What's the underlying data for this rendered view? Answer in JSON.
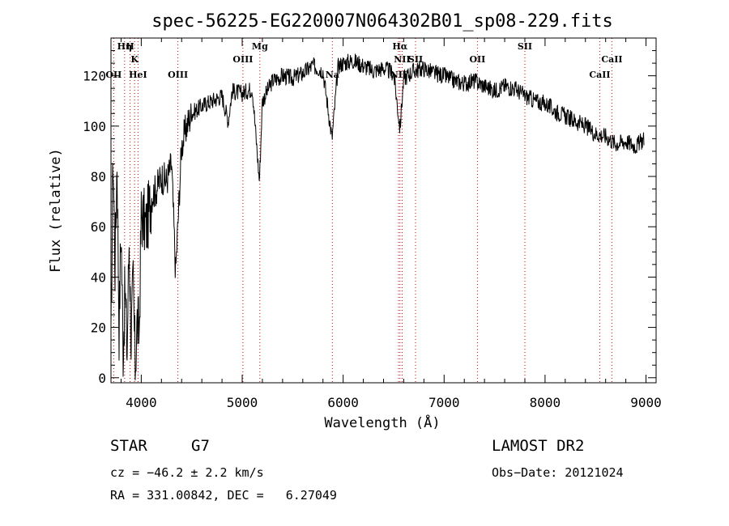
{
  "chart_data": {
    "type": "line",
    "title": "spec-56225-EG220007N064302B01_sp08-229.fits",
    "xlabel": "Wavelength (Å)",
    "ylabel": "Flux (relative)",
    "xlim": [
      3700,
      9100
    ],
    "ylim": [
      -2,
      135
    ],
    "x_ticks": [
      4000,
      5000,
      6000,
      7000,
      8000,
      9000
    ],
    "y_ticks": [
      0,
      20,
      40,
      60,
      80,
      100,
      120
    ],
    "grid": false,
    "series": [
      {
        "x": [
          3700,
          3720,
          3740,
          3760,
          3780,
          3800,
          3820,
          3840,
          3860,
          3880,
          3900,
          3920,
          3940,
          3960,
          3980,
          4000,
          4050,
          4100,
          4150,
          4200,
          4250,
          4300,
          4340,
          4400,
          4450,
          4500,
          4600,
          4700,
          4800,
          4861,
          4900,
          5000,
          5100,
          5170,
          5200,
          5300,
          5400,
          5500,
          5600,
          5700,
          5800,
          5890,
          5950,
          6000,
          6100,
          6200,
          6300,
          6400,
          6500,
          6563,
          6600,
          6700,
          6800,
          6900,
          7000,
          7100,
          7200,
          7300,
          7400,
          7500,
          7600,
          7700,
          7800,
          7900,
          8000,
          8100,
          8200,
          8300,
          8400,
          8500,
          8600,
          8700,
          8800,
          8900,
          8980
        ],
        "y": [
          10,
          90,
          45,
          88,
          20,
          60,
          12,
          35,
          10,
          55,
          15,
          38,
          5,
          22,
          18,
          65,
          60,
          72,
          75,
          80,
          78,
          85,
          42,
          92,
          100,
          105,
          108,
          110,
          112,
          102,
          114,
          113,
          115,
          78,
          110,
          118,
          120,
          119,
          121,
          124,
          122,
          95,
          124,
          125,
          126,
          124,
          122,
          123,
          121,
          99,
          119,
          122,
          123,
          121,
          120,
          118,
          117,
          118,
          116,
          114,
          116,
          115,
          112,
          110,
          109,
          106,
          104,
          102,
          100,
          97,
          96,
          93,
          94,
          92,
          95
        ]
      }
    ],
    "spectral_lines": [
      {
        "label": "OII",
        "x": 3727,
        "row": 3
      },
      {
        "label": "Hη",
        "x": 3835,
        "row": 1
      },
      {
        "label": "H",
        "x": 3889,
        "row": 1
      },
      {
        "label": "K",
        "x": 3934,
        "row": 2
      },
      {
        "label": "HeI",
        "x": 3968,
        "row": 3
      },
      {
        "label": "OIII",
        "x": 4363,
        "row": 3
      },
      {
        "label": "OIII",
        "x": 5007,
        "row": 2
      },
      {
        "label": "Mg",
        "x": 5175,
        "row": 1
      },
      {
        "label": "Na",
        "x": 5893,
        "row": 3
      },
      {
        "label": "Hα",
        "x": 6563,
        "row": 1
      },
      {
        "label": "NII",
        "x": 6584,
        "row": 2
      },
      {
        "label": "NII",
        "x": 6548,
        "row": 3
      },
      {
        "label": "SII",
        "x": 6717,
        "row": 2
      },
      {
        "label": "OII",
        "x": 7330,
        "row": 2
      },
      {
        "label": "SII",
        "x": 7800,
        "row": 1
      },
      {
        "label": "CaII",
        "x": 8542,
        "row": 3
      },
      {
        "label": "CaII",
        "x": 8662,
        "row": 2
      }
    ]
  },
  "info": {
    "object_class": "STAR",
    "subclass": "G7",
    "survey": "LAMOST DR2",
    "cz": "cz = −46.2 ± 2.2 km/s",
    "obs_date": "Obs−Date: 20121024",
    "coords": "RA = 331.00842, DEC =   6.27049"
  },
  "colors": {
    "line_marker": "#cc0000",
    "axis": "#000000",
    "spectrum": "#000000"
  }
}
